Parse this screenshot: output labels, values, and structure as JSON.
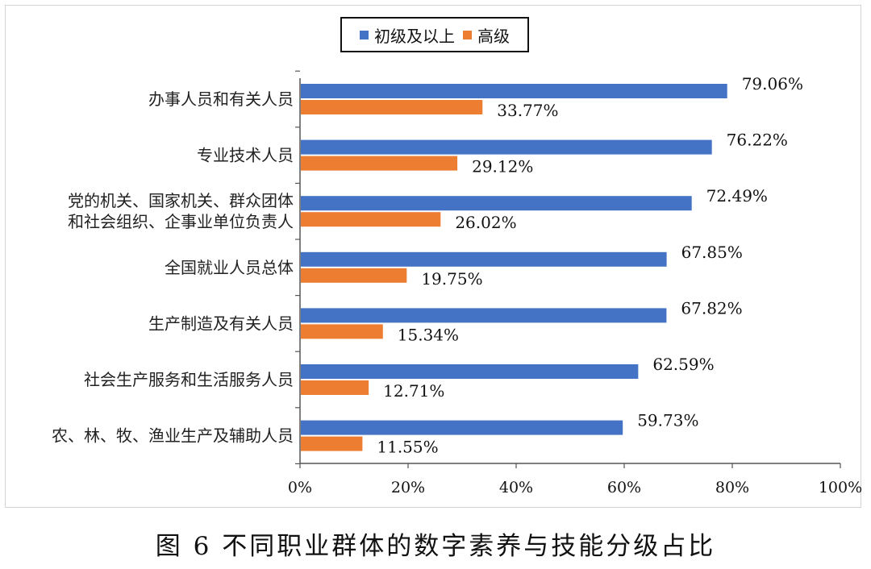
{
  "legend": {
    "series_1": "初级及以上",
    "series_2": "高级"
  },
  "caption": "图 6  不同职业群体的数字素养与技能分级占比",
  "chart_data": {
    "type": "bar",
    "orientation": "horizontal",
    "categories": [
      [
        "办事人员和有关人员"
      ],
      [
        "专业技术人员"
      ],
      [
        "党的机关、国家机关、群众团体",
        "和社会组织、企事业单位负责人"
      ],
      [
        "全国就业人员总体"
      ],
      [
        "生产制造及有关人员"
      ],
      [
        "社会生产服务和生活服务人员"
      ],
      [
        "农、林、牧、渔业生产及辅助人员"
      ]
    ],
    "series": [
      {
        "name": "初级及以上",
        "color": "#4472C4",
        "values": [
          79.06,
          76.22,
          72.49,
          67.85,
          67.82,
          62.59,
          59.73
        ],
        "labels": [
          "79.06%",
          "76.22%",
          "72.49%",
          "67.85%",
          "67.82%",
          "62.59%",
          "59.73%"
        ]
      },
      {
        "name": "高级",
        "color": "#ED7D31",
        "values": [
          33.77,
          29.12,
          26.02,
          19.75,
          15.34,
          12.71,
          11.55
        ],
        "labels": [
          "33.77%",
          "29.12%",
          "26.02%",
          "19.75%",
          "15.34%",
          "12.71%",
          "11.55%"
        ]
      }
    ],
    "xlim": [
      0,
      100
    ],
    "xticks": [
      0,
      20,
      40,
      60,
      80,
      100
    ],
    "xtick_labels": [
      "0%",
      "20%",
      "40%",
      "60%",
      "80%",
      "100%"
    ],
    "grid": false,
    "legend_position": "top-center"
  }
}
